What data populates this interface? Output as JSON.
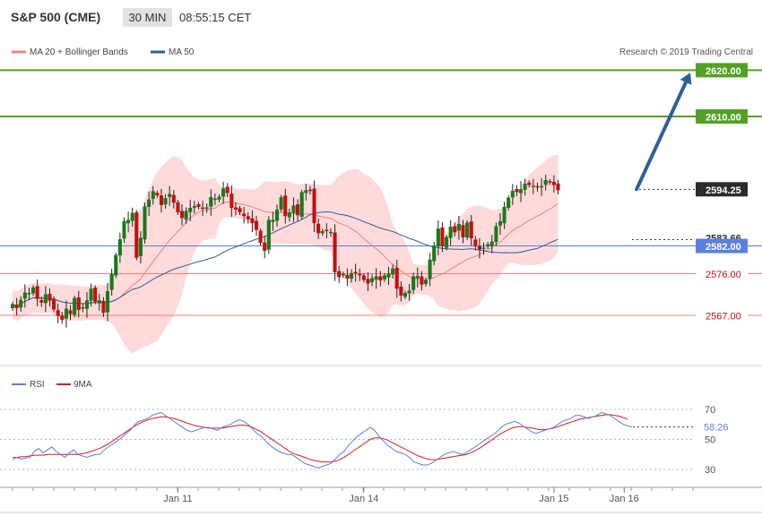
{
  "header": {
    "title": "S&P 500 (CME)",
    "timeframe": "30 MIN",
    "time": "08:55:15 CET"
  },
  "legend": [
    {
      "label": "MA 20 + Bollinger Bands",
      "color": "#f08080"
    },
    {
      "label": "MA 50",
      "color": "#2f5f96"
    }
  ],
  "research": "Research © 2019 Trading Central",
  "rsi_legend": [
    {
      "label": "RSI",
      "color": "#5b7fdc"
    },
    {
      "label": "9MA",
      "color": "#e0191b"
    }
  ],
  "colors": {
    "up": "#1a7a1a",
    "down": "#c21010",
    "target": "#54a024",
    "support": "#f08080",
    "pivot": "#5b7fdc",
    "arrow": "#2e5f9e",
    "band_fill": "#ffd6d6"
  },
  "chart_data": [
    {
      "type": "candlestick",
      "title": "S&P 500 (CME)",
      "ylim": [
        2561,
        2623
      ],
      "x_ticks": [
        {
          "i": 40,
          "label": "Jan 11"
        },
        {
          "i": 85,
          "label": "Jan 14"
        },
        {
          "i": 131,
          "label": "Jan 15"
        },
        {
          "i": 148,
          "label": "Jan 16"
        }
      ],
      "levels": [
        {
          "value": 2620.0,
          "label": "2620.00",
          "kind": "target"
        },
        {
          "value": 2610.0,
          "label": "2610.00",
          "kind": "target"
        },
        {
          "value": 2594.25,
          "label": "2594.25",
          "kind": "last"
        },
        {
          "value": 2583.66,
          "label": "2583.66",
          "kind": "ma50"
        },
        {
          "value": 2582.0,
          "label": "2582.00",
          "kind": "pivot"
        },
        {
          "value": 2576.0,
          "label": "2576.00",
          "kind": "support"
        },
        {
          "value": 2567.0,
          "label": "2567.00",
          "kind": "support"
        }
      ],
      "arrow": {
        "from": [
          151,
          2594.25
        ],
        "to": [
          164,
          2619.5
        ]
      },
      "ohlc_close": [
        2569.4,
        2568.6,
        2570.3,
        2571.9,
        2571.8,
        2573.0,
        2570.6,
        2569.8,
        2571.5,
        2570.2,
        2568.3,
        2566.9,
        2566.1,
        2568.4,
        2567.3,
        2570.7,
        2568.2,
        2568.7,
        2570.2,
        2572.7,
        2570.0,
        2570.2,
        2567.6,
        2572.2,
        2575.9,
        2580.0,
        2583.4,
        2587.3,
        2587.6,
        2589.1,
        2579.5,
        2583.7,
        2590.5,
        2592.0,
        2593.8,
        2593.0,
        2590.9,
        2592.3,
        2593.2,
        2591.4,
        2589.3,
        2588.1,
        2589.5,
        2590.2,
        2590.6,
        2590.5,
        2590.1,
        2590.3,
        2592.5,
        2592.2,
        2592.6,
        2594.4,
        2593.5,
        2590.3,
        2589.9,
        2589.3,
        2588.5,
        2587.8,
        2587.0,
        2585.5,
        2582.7,
        2581.0,
        2587.6,
        2587.6,
        2589.8,
        2592.5,
        2588.5,
        2589.2,
        2590.7,
        2588.7,
        2593.6,
        2594.0,
        2594.0,
        2587.0,
        2584.8,
        2585.2,
        2585.3,
        2585.0,
        2576.4,
        2575.3,
        2575.9,
        2575.0,
        2576.1,
        2576.3,
        2575.7,
        2574.7,
        2573.9,
        2575.0,
        2575.4,
        2574.6,
        2575.6,
        2576.0,
        2577.1,
        2572.8,
        2571.3,
        2571.8,
        2572.3,
        2575.4,
        2575.5,
        2573.7,
        2574.6,
        2579.0,
        2582.0,
        2585.7,
        2582.0,
        2583.9,
        2586.1,
        2585.0,
        2586.7,
        2583.9,
        2587.0,
        2583.7,
        2582.0,
        2581.3,
        2581.6,
        2582.3,
        2582.9,
        2586.2,
        2587.3,
        2590.4,
        2592.4,
        2593.9,
        2593.7,
        2594.2,
        2595.4,
        2595.2,
        2595.0,
        2594.7,
        2594.9,
        2596.2,
        2595.8,
        2595.2,
        2594.1
      ],
      "rsi": {
        "ylim": [
          20,
          80
        ],
        "ticks": [
          30,
          50,
          70
        ],
        "last_label": "58.26",
        "rsi": [
          36.5,
          38,
          37,
          37.5,
          38,
          42,
          44,
          41,
          43,
          45,
          42,
          40,
          38,
          41,
          43,
          40,
          39,
          38,
          39,
          40,
          40,
          43,
          45,
          47,
          49,
          51,
          54,
          56,
          60,
          62,
          63,
          64,
          66,
          67,
          68,
          66,
          64,
          62,
          60,
          58,
          56,
          55,
          56,
          57,
          58,
          58,
          57,
          56,
          58,
          59,
          60,
          62,
          63,
          62,
          60,
          57,
          54,
          52,
          49,
          46,
          44,
          42,
          41,
          40,
          40,
          38,
          36,
          34,
          33,
          32,
          31,
          32,
          33,
          34,
          37,
          40,
          42,
          46,
          49,
          52,
          54,
          56,
          58,
          56,
          52,
          49,
          46,
          44,
          42,
          41,
          40,
          38,
          35,
          34,
          33,
          33,
          34,
          36,
          38,
          40,
          41,
          42,
          41,
          40,
          41,
          43,
          45,
          47,
          49,
          51,
          53,
          55,
          58,
          60,
          61,
          62,
          61,
          59,
          57,
          55,
          54,
          55,
          56,
          57,
          58,
          60,
          62,
          63,
          64,
          66,
          66,
          65,
          64,
          65,
          66,
          68,
          67,
          66,
          64,
          62,
          60,
          59,
          58.26
        ],
        "ma9": [
          38,
          38,
          38.5,
          38.5,
          39,
          39.5,
          39.5,
          39.5,
          40,
          40,
          40,
          40,
          40,
          40,
          40,
          40,
          40.5,
          41,
          42,
          43,
          44,
          45.5,
          47,
          49,
          51,
          53,
          55,
          57,
          59,
          60.5,
          62,
          63,
          64,
          64.5,
          65,
          65,
          64.5,
          64,
          63,
          62,
          61,
          60,
          59,
          58.5,
          58,
          57.5,
          57.5,
          57.5,
          57.5,
          58,
          58.5,
          59,
          59.5,
          59.5,
          59,
          58,
          56.5,
          55,
          53,
          51,
          49,
          47,
          45,
          43,
          41,
          40,
          39,
          38,
          37,
          36,
          35.5,
          35,
          35,
          35,
          35.5,
          36.5,
          38,
          40,
          42,
          44,
          46,
          48,
          50,
          51,
          51,
          50.5,
          49.5,
          48,
          46.5,
          45,
          43.5,
          42,
          40.5,
          39,
          38,
          37,
          36.5,
          36.5,
          37,
          37.5,
          38,
          38.5,
          39,
          39.5,
          40,
          41,
          42.5,
          44,
          46,
          48,
          50,
          52,
          54,
          55.5,
          57,
          58,
          58.5,
          58.5,
          58,
          57.5,
          57,
          56.5,
          56.5,
          57,
          57.5,
          58.5,
          59.5,
          60.5,
          61.5,
          62.5,
          63.5,
          64,
          64.5,
          65,
          65.5,
          66,
          66.5,
          66.5,
          66,
          65.5,
          64.5,
          63.5
        ]
      }
    }
  ]
}
